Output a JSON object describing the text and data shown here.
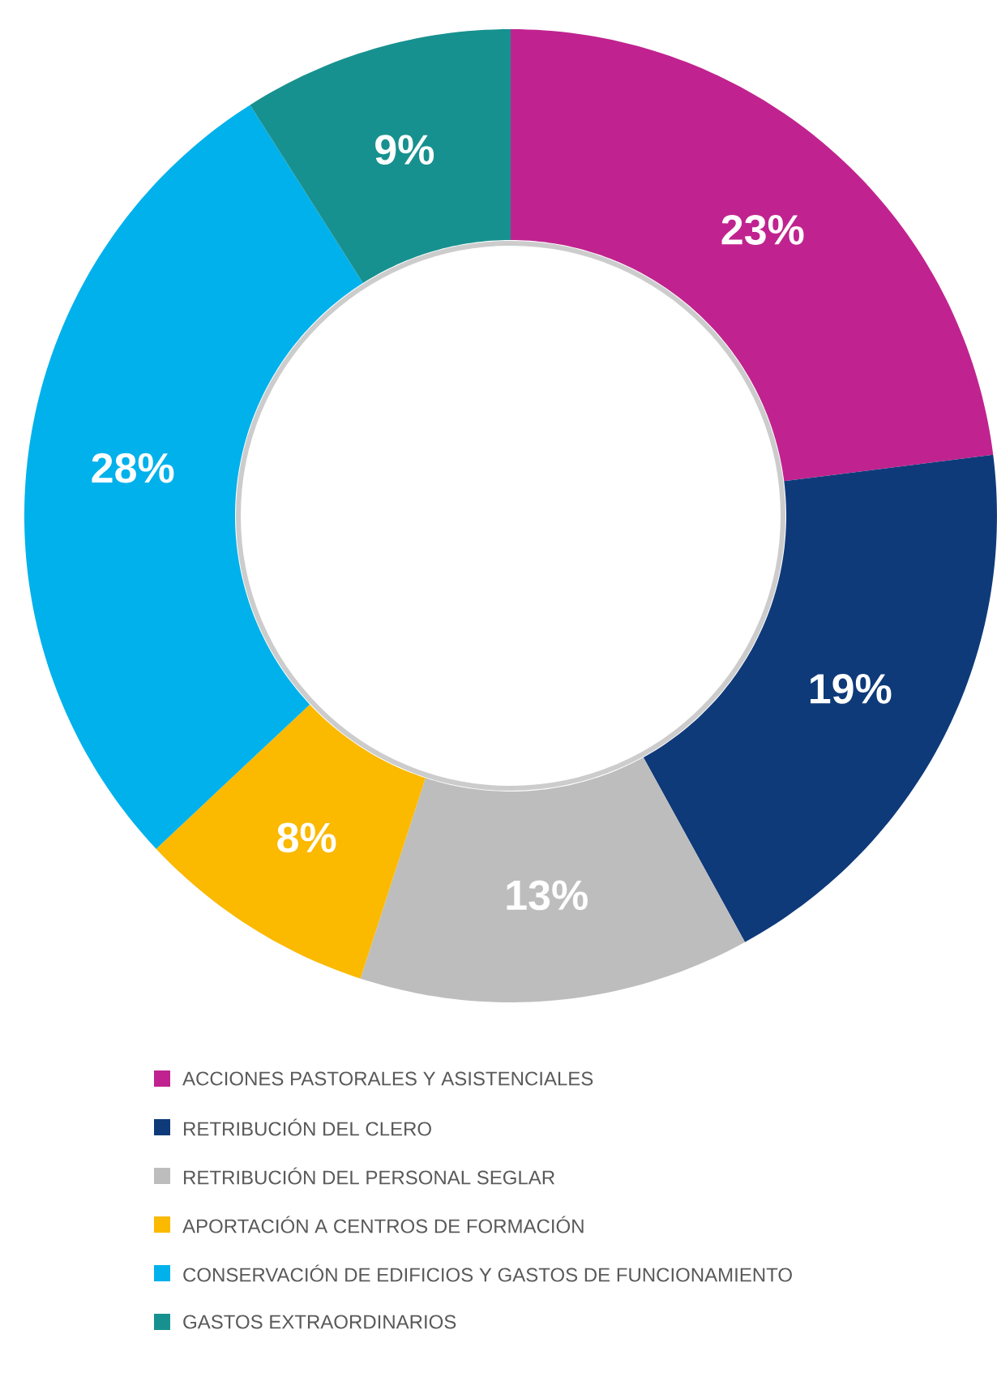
{
  "chart_data": {
    "type": "donut",
    "categories": [
      "ACCIONES PASTORALES Y ASISTENCIALES",
      "RETRIBUCIÓN DEL CLERO",
      "RETRIBUCIÓN DEL PERSONAL SEGLAR",
      "APORTACIÓN A CENTROS DE FORMACIÓN",
      "CONSERVACIÓN DE EDIFICIOS Y GASTOS DE FUNCIONAMIENTO",
      "GASTOS EXTRAORDINARIOS"
    ],
    "values": [
      23,
      19,
      13,
      8,
      28,
      9
    ],
    "value_labels": [
      "23%",
      "19%",
      "13%",
      "8%",
      "28%",
      "9%"
    ],
    "colors": [
      "#c0238f",
      "#0f3a7a",
      "#bdbdbd",
      "#fbb900",
      "#00b1eb",
      "#17918f"
    ],
    "legend": "bottom"
  }
}
